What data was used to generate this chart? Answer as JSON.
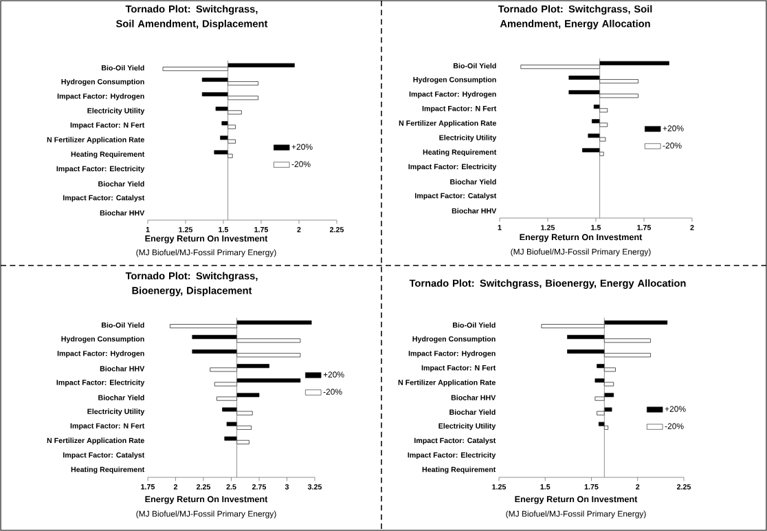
{
  "chart_data": [
    {
      "type": "bar",
      "orientation": "horizontal",
      "title": "Tornado Plot: Switchgrass, Soil Amendment, Displacement",
      "xlabel": "Energy Return On Investment",
      "annotations": [
        "(MJ Biofuel/MJ-Fossil Primary Energy)"
      ],
      "categories": [
        "Bio-Oil Yield",
        "Hydrogen Consumption",
        "Impact Factor: Hydrogen",
        "Electricity Utility",
        "Impact Factor: N Fert",
        "N Fertilizer Application Rate",
        "Heating Requirement",
        "Impact Factor: Electricity",
        "Biochar Yield",
        "Impact Factor: Catalyst",
        "Biochar HHV"
      ],
      "ref_lines": [
        {
          "axis": "x",
          "value": 1.53
        }
      ],
      "series": [
        {
          "name": "+20%",
          "color": "#000000",
          "base": [
            1.53,
            1.53,
            1.53,
            1.53,
            1.53,
            1.53,
            1.53,
            null,
            null,
            null,
            null
          ],
          "values": [
            0.44,
            -0.17,
            -0.17,
            -0.08,
            -0.04,
            -0.05,
            -0.09,
            null,
            null,
            null,
            null
          ]
        },
        {
          "name": "-20%",
          "color": "#ffffff",
          "base": [
            1.53,
            1.53,
            1.53,
            1.53,
            1.53,
            1.53,
            1.53,
            null,
            null,
            null,
            null
          ],
          "values": [
            -0.43,
            0.2,
            0.2,
            0.09,
            0.05,
            0.05,
            0.03,
            null,
            null,
            null,
            null
          ]
        }
      ],
      "xlim": [
        1,
        2.25
      ],
      "xticks": [
        1,
        1.25,
        1.5,
        1.75,
        2,
        2.25
      ],
      "legend": "right"
    },
    {
      "type": "bar",
      "orientation": "horizontal",
      "title": "Tornado Plot: Switchgrass, Soil Amendment, Energy Allocation",
      "xlabel": "Energy Return On Investment",
      "annotations": [
        "(MJ Biofuel/MJ-Fossil Primary Energy)"
      ],
      "categories": [
        "Bio-Oil Yield",
        "Hydrogen Consumption",
        "Impact Factor: Hydrogen",
        "Impact Factor: N Fert",
        "N Fertilizer Application Rate",
        "Electricity Utility",
        "Heating Requirement",
        "Impact Factor: Electricity",
        "Biochar Yield",
        "Impact Factor: Catalyst",
        "Biochar HHV"
      ],
      "ref_lines": [
        {
          "axis": "x",
          "value": 1.52
        }
      ],
      "series": [
        {
          "name": "+20%",
          "color": "#000000",
          "base": [
            1.52,
            1.52,
            1.52,
            1.52,
            1.52,
            1.52,
            1.52,
            null,
            null,
            null,
            null
          ],
          "values": [
            0.36,
            -0.16,
            -0.16,
            -0.03,
            -0.04,
            -0.06,
            -0.09,
            null,
            null,
            null,
            null
          ]
        },
        {
          "name": "-20%",
          "color": "#ffffff",
          "base": [
            1.52,
            1.52,
            1.52,
            1.52,
            1.52,
            1.52,
            1.52,
            null,
            null,
            null,
            null
          ],
          "values": [
            -0.41,
            0.2,
            0.2,
            0.04,
            0.04,
            0.03,
            0.02,
            null,
            null,
            null,
            null
          ]
        }
      ],
      "xlim": [
        1,
        2
      ],
      "xticks": [
        1,
        1.25,
        1.5,
        1.75,
        2
      ],
      "legend": "right"
    },
    {
      "type": "bar",
      "orientation": "horizontal",
      "title": "Tornado Plot: Switchgrass, Bioenergy, Displacement",
      "xlabel": "Energy Return On Investment",
      "annotations": [
        "(MJ Biofuel/MJ-Fossil Primary Energy)"
      ],
      "categories": [
        "Bio-Oil Yield",
        "Hydrogen Consumption",
        "Impact Factor: Hydrogen",
        "Biochar HHV",
        "Impact Factor: Electricity",
        "Biochar Yield",
        "Electricity Utility",
        "Impact Factor: N Fert",
        "N Fertilizer Application Rate",
        "Impact Factor: Catalyst",
        "Heating Requirement"
      ],
      "ref_lines": [
        {
          "axis": "x",
          "value": 2.55
        }
      ],
      "series": [
        {
          "name": "+20%",
          "color": "#000000",
          "base": [
            2.55,
            2.55,
            2.55,
            2.55,
            2.55,
            2.55,
            2.55,
            2.55,
            2.55,
            null,
            null
          ],
          "values": [
            0.67,
            -0.4,
            -0.4,
            0.29,
            0.57,
            0.2,
            -0.13,
            -0.09,
            -0.11,
            null,
            null
          ]
        },
        {
          "name": "-20%",
          "color": "#ffffff",
          "base": [
            2.55,
            2.55,
            2.55,
            2.55,
            2.55,
            2.55,
            2.55,
            2.55,
            2.55,
            null,
            null
          ],
          "values": [
            -0.6,
            0.57,
            0.57,
            -0.24,
            -0.2,
            -0.18,
            0.14,
            0.13,
            0.11,
            null,
            null
          ]
        }
      ],
      "xlim": [
        1.75,
        3.25
      ],
      "xticks": [
        1.75,
        2,
        2.25,
        2.5,
        2.75,
        3,
        3.25
      ],
      "legend": "right"
    },
    {
      "type": "bar",
      "orientation": "horizontal",
      "title": "Tornado Plot: Switchgrass, Bioenergy, Energy Allocation",
      "xlabel": "Energy Return On Investment",
      "annotations": [
        "(MJ Biofuel/MJ-Fossil Primary Energy)"
      ],
      "categories": [
        "Bio-Oil Yield",
        "Hydrogen Consumption",
        "Impact Factor: Hydrogen",
        "Impact Factor: N Fert",
        "N Fertilizer Application Rate",
        "Biochar HHV",
        "Biochar Yield",
        "Electricity Utility",
        "Impact Factor: Catalyst",
        "Impact Factor: Electricity",
        "Heating Requirement"
      ],
      "ref_lines": [
        {
          "axis": "x",
          "value": 1.82
        }
      ],
      "series": [
        {
          "name": "+20%",
          "color": "#000000",
          "base": [
            1.82,
            1.82,
            1.82,
            1.82,
            1.82,
            1.82,
            1.82,
            1.82,
            null,
            null,
            null
          ],
          "values": [
            0.34,
            -0.2,
            -0.2,
            -0.04,
            -0.05,
            0.05,
            0.04,
            -0.03,
            null,
            null,
            null
          ]
        },
        {
          "name": "-20%",
          "color": "#ffffff",
          "base": [
            1.82,
            1.82,
            1.82,
            1.82,
            1.82,
            1.82,
            1.82,
            1.82,
            null,
            null,
            null
          ],
          "values": [
            -0.34,
            0.25,
            0.25,
            0.06,
            0.05,
            -0.05,
            -0.04,
            0.02,
            null,
            null,
            null
          ]
        }
      ],
      "xlim": [
        1.25,
        2.25
      ],
      "xticks": [
        1.25,
        1.5,
        1.75,
        2,
        2.25
      ],
      "legend": "right"
    }
  ]
}
